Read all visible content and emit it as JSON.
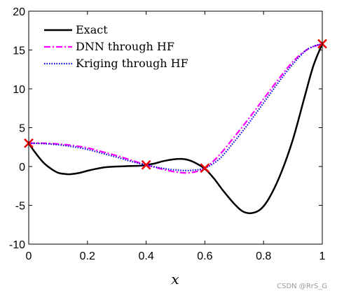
{
  "chart_data": {
    "type": "line",
    "title": "",
    "xlabel": "x",
    "ylabel": "",
    "xlim": [
      0,
      1
    ],
    "ylim": [
      -10,
      20
    ],
    "xticks": [
      0,
      0.2,
      0.4,
      0.6,
      0.8,
      1
    ],
    "xtick_labels": [
      "0",
      "0.2",
      "0.4",
      "0.6",
      "0.8",
      "1"
    ],
    "yticks": [
      -10,
      -5,
      0,
      5,
      10,
      15,
      20
    ],
    "ytick_labels": [
      "-10",
      "-5",
      "0",
      "5",
      "10",
      "15",
      "20"
    ],
    "grid": false,
    "legend_position": "top-left",
    "series": [
      {
        "name": "Exact",
        "color": "#000000",
        "style": "solid",
        "x": [
          0,
          0.02,
          0.05,
          0.08,
          0.1,
          0.12,
          0.14,
          0.17,
          0.2,
          0.23,
          0.26,
          0.3,
          0.34,
          0.38,
          0.4,
          0.43,
          0.46,
          0.5,
          0.53,
          0.56,
          0.6,
          0.63,
          0.66,
          0.7,
          0.73,
          0.76,
          0.79,
          0.82,
          0.86,
          0.9,
          0.94,
          0.97,
          1
        ],
        "y": [
          3.0,
          1.9,
          0.5,
          -0.4,
          -0.8,
          -0.95,
          -1.0,
          -0.85,
          -0.55,
          -0.3,
          -0.1,
          0.0,
          0.05,
          0.1,
          0.2,
          0.4,
          0.7,
          0.95,
          0.95,
          0.6,
          -0.3,
          -1.5,
          -3.0,
          -4.8,
          -5.8,
          -6.0,
          -5.5,
          -4.0,
          -0.8,
          3.5,
          9.0,
          13.0,
          15.8
        ]
      },
      {
        "name": "DNN through HF",
        "color": "#ff00ff",
        "style": "dashdot",
        "x": [
          0,
          0.05,
          0.1,
          0.15,
          0.2,
          0.25,
          0.3,
          0.35,
          0.4,
          0.45,
          0.5,
          0.55,
          0.6,
          0.65,
          0.7,
          0.75,
          0.8,
          0.85,
          0.9,
          0.95,
          1
        ],
        "y": [
          3.0,
          3.0,
          2.9,
          2.7,
          2.4,
          1.9,
          1.4,
          0.8,
          0.2,
          -0.3,
          -0.7,
          -0.8,
          -0.2,
          1.5,
          3.8,
          6.2,
          8.7,
          11.2,
          13.5,
          15.1,
          15.8
        ]
      },
      {
        "name": "Kriging through HF",
        "color": "#0000dd",
        "style": "dotted",
        "x": [
          0,
          0.05,
          0.1,
          0.15,
          0.2,
          0.25,
          0.3,
          0.35,
          0.4,
          0.45,
          0.5,
          0.55,
          0.6,
          0.65,
          0.7,
          0.75,
          0.8,
          0.85,
          0.9,
          0.95,
          1
        ],
        "y": [
          3.0,
          2.95,
          2.8,
          2.55,
          2.2,
          1.7,
          1.2,
          0.65,
          0.2,
          -0.2,
          -0.45,
          -0.5,
          -0.2,
          1.0,
          3.2,
          5.6,
          8.2,
          10.8,
          13.2,
          15.1,
          15.8
        ]
      }
    ],
    "markers": {
      "name": "",
      "color": "#ee0000",
      "shape": "cross",
      "x": [
        0,
        0.4,
        0.6,
        1
      ],
      "y": [
        3.0,
        0.2,
        -0.2,
        15.8
      ]
    }
  },
  "watermark": "CSDN @RrS_G"
}
